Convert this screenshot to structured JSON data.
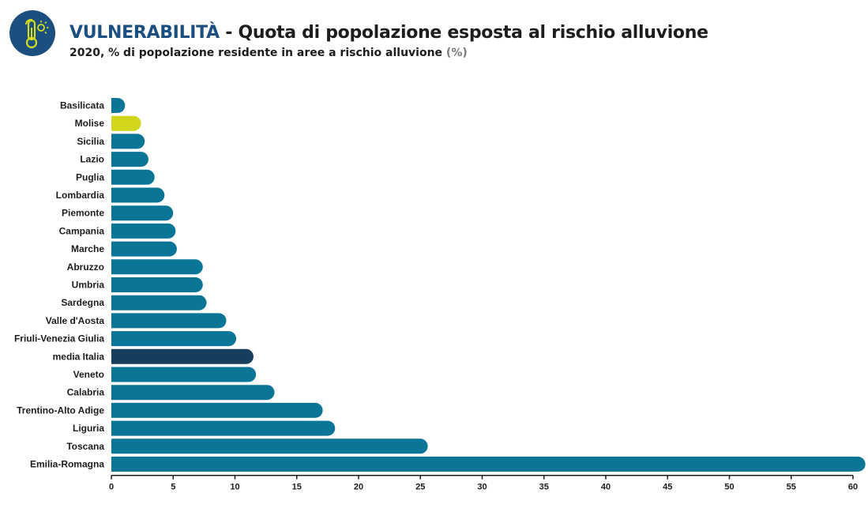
{
  "header": {
    "title_accent": "VULNERABILITÀ",
    "title_rest": " - Quota di popolazione esposta al rischio alluvione",
    "subtitle_main": "2020, % di popolazione residente in aree a rischio alluvione ",
    "subtitle_unit": "(%)"
  },
  "logo": {
    "icon": "thermometer-sun-icon",
    "color": "#1a4f80",
    "glyph_color": "#d6dc1a"
  },
  "colors": {
    "default_bar": "#0b7598",
    "highlight_bar": "#d0d61a",
    "average_bar": "#143d5e"
  },
  "chart_data": {
    "type": "bar",
    "orientation": "horizontal",
    "title": "VULNERABILITÀ - Quota di popolazione esposta al rischio alluvione",
    "subtitle": "2020, % di popolazione residente in aree a rischio alluvione (%)",
    "xlabel": "",
    "ylabel": "",
    "xlim": [
      0,
      60
    ],
    "xticks": [
      0,
      5,
      10,
      15,
      20,
      25,
      30,
      35,
      40,
      45,
      50,
      55,
      60
    ],
    "grid": false,
    "legend": "none",
    "categories": [
      "Basilicata",
      "Molise",
      "Sicilia",
      "Lazio",
      "Puglia",
      "Lombardia",
      "Piemonte",
      "Campania",
      "Marche",
      "Abruzzo",
      "Umbria",
      "Sardegna",
      "Valle d'Aosta",
      "Friuli-Venezia Giulia",
      "media Italia",
      "Veneto",
      "Calabria",
      "Trentino-Alto Adige",
      "Liguria",
      "Toscana",
      "Emilia-Romagna"
    ],
    "values": [
      1.0,
      2.4,
      2.7,
      3.0,
      3.5,
      4.3,
      5.0,
      5.2,
      5.3,
      7.4,
      7.4,
      7.7,
      9.3,
      10.1,
      11.5,
      11.7,
      13.2,
      17.1,
      18.1,
      25.6,
      61.0
    ],
    "highlight": [
      "Molise"
    ],
    "average": [
      "media Italia"
    ]
  }
}
